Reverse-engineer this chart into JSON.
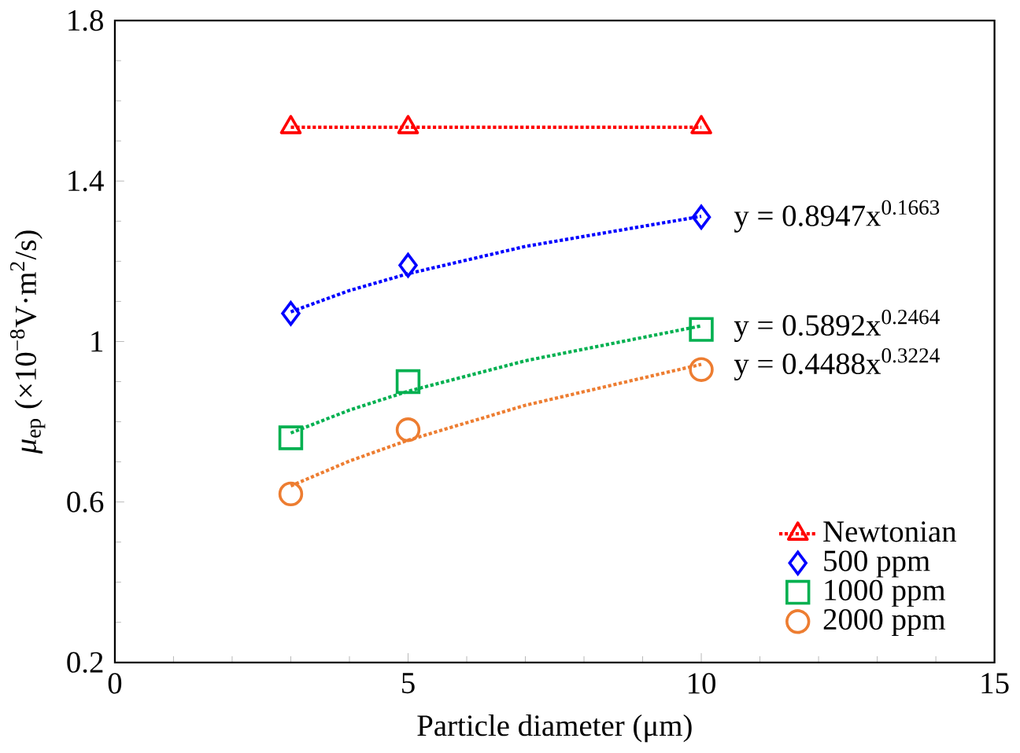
{
  "chart_data": {
    "type": "scatter",
    "xlabel": "Particle diameter (μm)",
    "ylabel": "*μ*$_{ep}$ (×10$^{−8}$V·m$^{2}$/s)",
    "xlim": [
      0,
      15
    ],
    "xticks": [
      0,
      5,
      10,
      15
    ],
    "ylim": [
      0.2,
      1.8
    ],
    "yticks": [
      0.2,
      0.6,
      1,
      1.4,
      1.8
    ],
    "legend": "bottom right",
    "grid": false,
    "series": [
      {
        "name": "Newtonian",
        "type": "line",
        "marker": "triangle",
        "line_style": "dotted",
        "color": "#ff0000",
        "x": [
          3,
          5,
          10
        ],
        "values": [
          1.534,
          1.534,
          1.534
        ]
      },
      {
        "name": "500 ppm",
        "marker": "diamond",
        "color": "#0000ff",
        "x": [
          3,
          5,
          10
        ],
        "values": [
          1.07,
          1.19,
          1.31
        ]
      },
      {
        "name": "1000 ppm",
        "marker": "square",
        "color": "#00b050",
        "x": [
          3,
          5,
          10
        ],
        "values": [
          0.76,
          0.9,
          1.03
        ]
      },
      {
        "name": "2000 ppm",
        "marker": "circle",
        "color": "#ed7d31",
        "x": [
          3,
          5,
          10
        ],
        "values": [
          0.62,
          0.78,
          0.93
        ]
      },
      {
        "type": "line",
        "marker": "none",
        "line_style": "dotted",
        "color": "#0000ff",
        "x": [
          3,
          4,
          5,
          7,
          10
        ],
        "values": [
          1.074,
          1.127,
          1.169,
          1.237,
          1.312
        ]
      },
      {
        "type": "line",
        "marker": "none",
        "line_style": "dotted",
        "color": "#00b050",
        "x": [
          3,
          4,
          5,
          7,
          10
        ],
        "values": [
          0.772,
          0.829,
          0.876,
          0.952,
          1.039
        ]
      },
      {
        "type": "line",
        "marker": "none",
        "line_style": "dotted",
        "color": "#ed7d31",
        "x": [
          3,
          4,
          5,
          7,
          10
        ],
        "values": [
          0.64,
          0.702,
          0.754,
          0.841,
          0.943
        ]
      }
    ],
    "annotations": [
      "y = 0.8947x$^{0.1663}$",
      "y = 0.5892x$^{0.2464}$",
      "y = 0.4488x$^{0.3224}$"
    ]
  }
}
